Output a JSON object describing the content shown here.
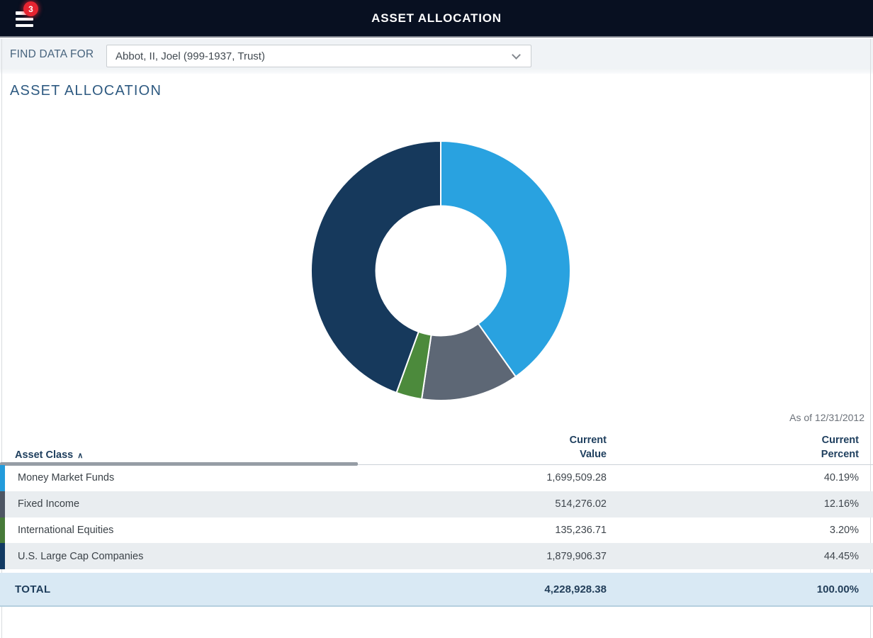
{
  "nav": {
    "title": "ASSET ALLOCATION",
    "menu_badge": "3"
  },
  "find_bar": {
    "label": "FIND DATA FOR",
    "selected_account": "Abbot, II, Joel (999-1937, Trust)"
  },
  "page": {
    "heading": "ASSET ALLOCATION",
    "as_of": "As of 12/31/2012"
  },
  "table": {
    "col_asset_class": "Asset Class",
    "col_value_line1": "Current",
    "col_value_line2": "Value",
    "col_pct_line1": "Current",
    "col_pct_line2": "Percent",
    "rows": [
      {
        "name": "Money Market Funds",
        "value": "1,699,509.28",
        "percent": "40.19%",
        "color": "#239bdb"
      },
      {
        "name": "Fixed Income",
        "value": "514,276.02",
        "percent": "12.16%",
        "color": "#4e5663"
      },
      {
        "name": "International Equities",
        "value": "135,236.71",
        "percent": "3.20%",
        "color": "#477a39"
      },
      {
        "name": "U.S. Large Cap Companies",
        "value": "1,879,906.37",
        "percent": "44.45%",
        "color": "#123a63"
      }
    ],
    "total_label": "TOTAL",
    "total_value": "4,228,928.38",
    "total_percent": "100.00%"
  },
  "chart_data": {
    "type": "pie",
    "title": "Asset Allocation",
    "labels": [
      "Money Market Funds",
      "Fixed Income",
      "International Equities",
      "U.S. Large Cap Companies"
    ],
    "values": [
      40.19,
      12.16,
      3.2,
      44.45
    ],
    "amounts": [
      1699509.28,
      514276.02,
      135236.71,
      1879906.37
    ],
    "total_amount": 4228928.38,
    "colors": [
      "#29a2e0",
      "#5d6775",
      "#4c8a3c",
      "#16395c"
    ],
    "inner_radius_ratio": 0.5,
    "start_angle_deg": 0,
    "direction": "clockwise",
    "legend_position": "none",
    "as_of_date": "12/31/2012"
  }
}
